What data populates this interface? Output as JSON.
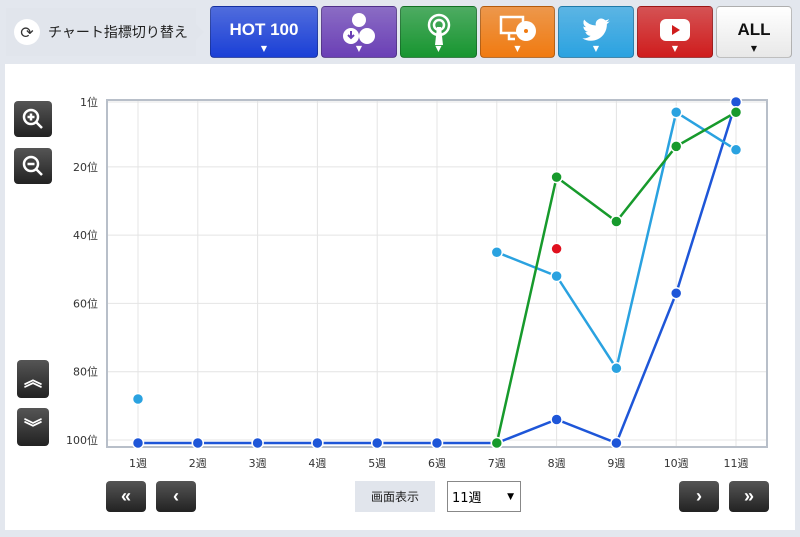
{
  "toolbar": {
    "switch_label": "チャート指標切り替え",
    "buttons": [
      {
        "name": "hot100",
        "label": "HOT 100",
        "color": "#1a3fd6",
        "icon": "text"
      },
      {
        "name": "sales-download",
        "label": "",
        "color": "#6a3fb5",
        "icon": "download-cd-icon"
      },
      {
        "name": "radio",
        "label": "",
        "color": "#17952f",
        "icon": "radio-tower-icon"
      },
      {
        "name": "pc-lookup",
        "label": "",
        "color": "#f07a10",
        "icon": "monitor-cd-icon"
      },
      {
        "name": "twitter",
        "label": "",
        "color": "#2aa2e0",
        "icon": "twitter-bird-icon"
      },
      {
        "name": "youtube",
        "label": "",
        "color": "#cf1c1c",
        "icon": "youtube-icon"
      },
      {
        "name": "all",
        "label": "ALL",
        "color": "#ffffff",
        "icon": "text"
      }
    ]
  },
  "controls": {
    "display_label": "画面表示",
    "period_value": "11週"
  },
  "chart_data": {
    "type": "line",
    "x": [
      "1週",
      "2週",
      "3週",
      "4週",
      "5週",
      "6週",
      "7週",
      "8週",
      "9週",
      "10週",
      "11週"
    ],
    "yticks": [
      "1位",
      "20位",
      "40位",
      "60位",
      "80位",
      "100位"
    ],
    "ytick_values": [
      1,
      20,
      40,
      60,
      80,
      100
    ],
    "ylim": [
      1,
      100
    ],
    "y_inverted": true,
    "grid": true,
    "series": [
      {
        "color": "#1e56d8",
        "values": [
          100,
          100,
          100,
          100,
          100,
          100,
          100,
          94,
          100,
          57,
          1
        ]
      },
      {
        "color": "#2aa2e0",
        "values": [
          88,
          null,
          null,
          null,
          null,
          null,
          45,
          52,
          79,
          4,
          15
        ]
      },
      {
        "color": "#179a2c",
        "values": [
          null,
          null,
          null,
          null,
          null,
          null,
          100,
          23,
          36,
          14,
          4
        ]
      },
      {
        "color": "#e0101e",
        "values": [
          null,
          null,
          null,
          null,
          null,
          null,
          null,
          44,
          null,
          null,
          null
        ]
      }
    ]
  }
}
